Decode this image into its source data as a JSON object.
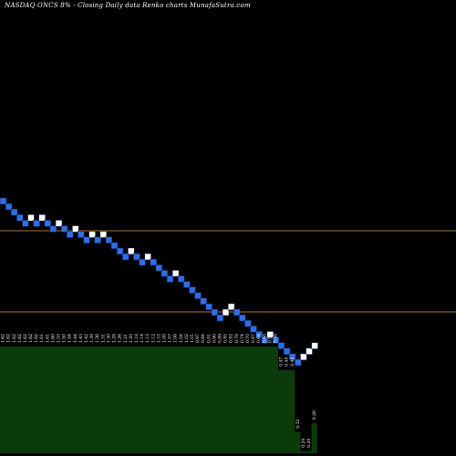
{
  "header": {
    "title": "NASDAQ ONCS 8% -   Closing Daily data  Renko  charts MunafaSutra.com"
  },
  "colors": {
    "background": "#000000",
    "up_brick": "#ffffff",
    "down_brick": "#2f6de4",
    "brick_border": "#0a1a4a",
    "reference_line": "#b4702a",
    "volume_fill": "#0b3b0b",
    "label_text": "#ffffff"
  },
  "chart_data": {
    "type": "renko",
    "brick_direction": [
      "down",
      "down",
      "down",
      "down",
      "down",
      "up",
      "down",
      "up",
      "down",
      "down",
      "up",
      "down",
      "down",
      "up",
      "down",
      "down",
      "up",
      "down",
      "up",
      "down",
      "down",
      "down",
      "down",
      "up",
      "down",
      "down",
      "up",
      "down",
      "down",
      "down",
      "down",
      "up",
      "down",
      "down",
      "down",
      "down",
      "down",
      "down",
      "down",
      "down",
      "up",
      "up",
      "down",
      "down",
      "down",
      "down",
      "down",
      "down",
      "up",
      "down",
      "down",
      "down",
      "down",
      "down",
      "up",
      "up",
      "up"
    ],
    "volume_labels": [
      "1.62",
      "1.62",
      "1.62",
      "1.62",
      "1.62",
      "1.62",
      "1.62",
      "1.61",
      "1.61",
      "1.60",
      "1.53",
      "1.50",
      "1.44",
      "1.44",
      "1.43",
      "1.42",
      "1.39",
      "1.36",
      "1.31",
      "1.30",
      "1.28",
      "1.26",
      "1.21",
      "1.20",
      "1.18",
      "1.14",
      "1.13",
      "1.12",
      "1.10",
      "1.08",
      "1.07",
      "1.06",
      "1.04",
      "1.02",
      "1.01",
      "0.97",
      "0.94",
      "0.91",
      "0.90",
      "0.89",
      "0.85",
      "0.82",
      "0.78",
      "0.74",
      "0.70",
      "0.67",
      "0.64",
      "0.60",
      "0.56",
      "0.46",
      "0.47",
      "0.45",
      "0.42",
      "0.32",
      "0.24",
      "0.20",
      "0.26"
    ],
    "volume_levels": [
      1,
      1,
      1,
      1,
      1,
      1,
      1,
      1,
      1,
      1,
      1,
      1,
      1,
      1,
      1,
      1,
      1,
      1,
      1,
      1,
      1,
      1,
      1,
      1,
      1,
      1,
      1,
      1,
      1,
      1,
      1,
      1,
      1,
      1,
      1,
      1,
      1,
      1,
      1,
      1,
      1,
      1,
      1,
      1,
      1,
      1,
      1,
      1,
      1,
      1,
      0.78,
      0.78,
      0.78,
      0.2,
      0.02,
      0.02,
      0.28
    ],
    "reference_lines": [
      0.6,
      0.9
    ]
  }
}
